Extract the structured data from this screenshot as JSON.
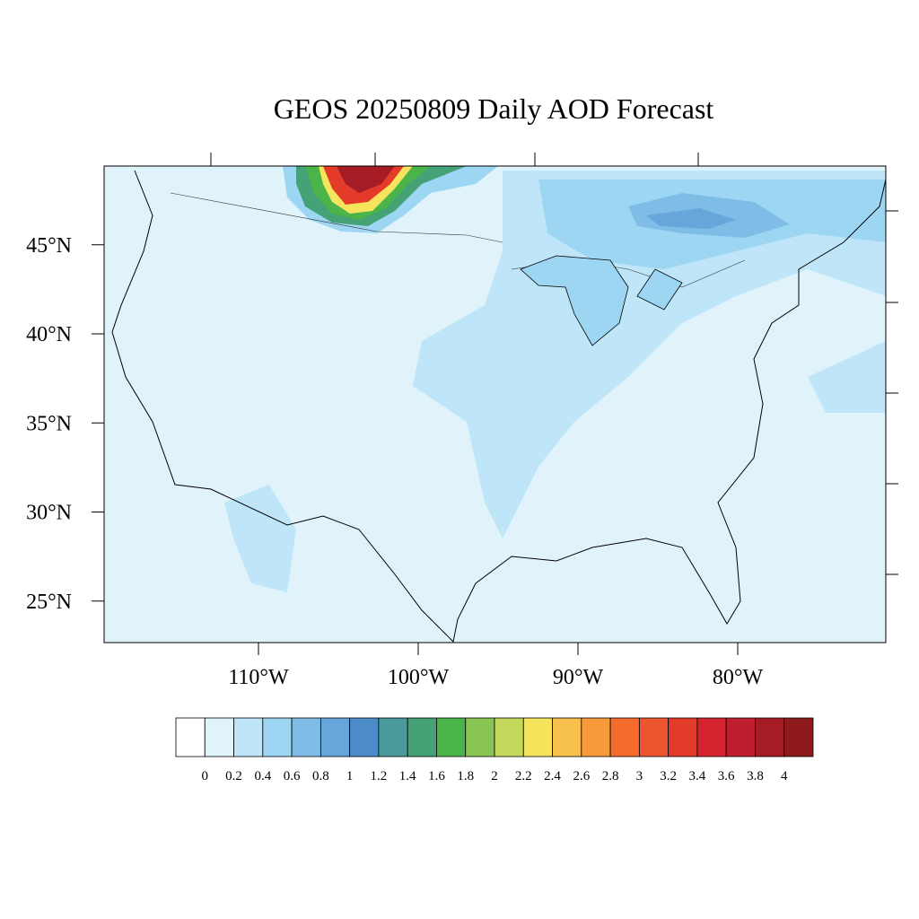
{
  "map": {
    "title": "GEOS 20250809 Daily AOD Forecast",
    "lon_ticks": [
      {
        "value": -110,
        "label": "110°W"
      },
      {
        "value": -100,
        "label": "100°W"
      },
      {
        "value": -90,
        "label": "90°W"
      },
      {
        "value": -80,
        "label": "80°W"
      }
    ],
    "lat_ticks": [
      {
        "value": 45,
        "label": "45°N"
      },
      {
        "value": 40,
        "label": "40°N"
      },
      {
        "value": 35,
        "label": "35°N"
      },
      {
        "value": 30,
        "label": "30°N"
      },
      {
        "value": 25,
        "label": "25°N"
      }
    ],
    "colorbar": {
      "levels": [
        0,
        0.2,
        0.4,
        0.6,
        0.8,
        1,
        1.2,
        1.4,
        1.6,
        1.8,
        2,
        2.2,
        2.4,
        2.6,
        2.8,
        3,
        3.2,
        3.4,
        3.6,
        3.8,
        4
      ],
      "colors": [
        "#ffffff",
        "#e0f3fb",
        "#bfe6f8",
        "#9dd6f3",
        "#80bde6",
        "#66a6da",
        "#4a8bc8",
        "#4a9a9c",
        "#45a276",
        "#4bb449",
        "#88c553",
        "#c4d85c",
        "#f6e55c",
        "#f7bf4c",
        "#f69a3c",
        "#f36c2c",
        "#ec5530",
        "#e43a29",
        "#d62330",
        "#bf1e2e",
        "#a61c24",
        "#8e1a1c"
      ]
    }
  }
}
